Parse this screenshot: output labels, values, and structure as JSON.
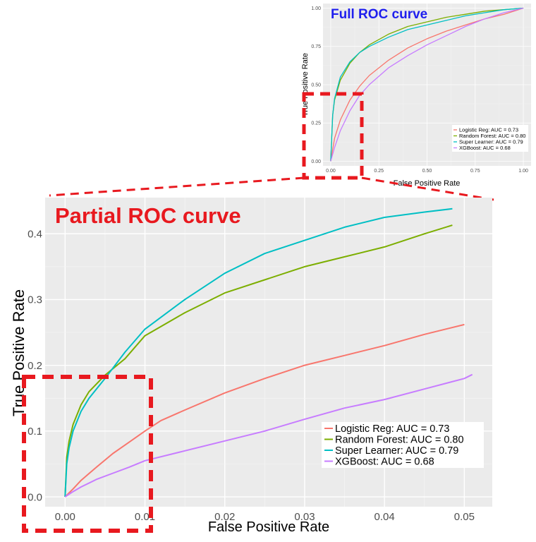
{
  "chart_data": [
    {
      "type": "line",
      "title": "Partial ROC curve",
      "xlabel": "False Positive Rate",
      "ylabel": "True Positive Rate",
      "xlim": [
        -0.0025,
        0.0535
      ],
      "ylim": [
        -0.015,
        0.455
      ],
      "xticks": [
        0.0,
        0.01,
        0.02,
        0.03,
        0.04,
        0.05
      ],
      "xtick_labels": [
        "0.00",
        "0.01",
        "0.02",
        "0.03",
        "0.04",
        "0.05"
      ],
      "yticks": [
        0.0,
        0.1,
        0.2,
        0.3,
        0.4
      ],
      "ytick_labels": [
        "0.0",
        "0.1",
        "0.2",
        "0.3",
        "0.4"
      ],
      "grid": true,
      "legend_position": "bottom-right",
      "series": [
        {
          "name": "Logistic Reg: AUC = 0.73",
          "color": "#F8766D",
          "x": [
            0,
            0.001,
            0.002,
            0.004,
            0.006,
            0.008,
            0.01,
            0.012,
            0.015,
            0.02,
            0.025,
            0.03,
            0.035,
            0.04,
            0.045,
            0.05
          ],
          "y": [
            0,
            0.012,
            0.025,
            0.046,
            0.066,
            0.083,
            0.1,
            0.116,
            0.132,
            0.158,
            0.18,
            0.2,
            0.215,
            0.23,
            0.247,
            0.262
          ]
        },
        {
          "name": "Random Forest: AUC = 0.80",
          "color": "#7CAE00",
          "x": [
            0,
            0.0002,
            0.0005,
            0.001,
            0.002,
            0.003,
            0.005,
            0.0075,
            0.01,
            0.015,
            0.02,
            0.025,
            0.03,
            0.035,
            0.04,
            0.045,
            0.0485
          ],
          "y": [
            0,
            0.06,
            0.085,
            0.11,
            0.14,
            0.16,
            0.185,
            0.21,
            0.245,
            0.28,
            0.31,
            0.33,
            0.35,
            0.365,
            0.38,
            0.4,
            0.413
          ]
        },
        {
          "name": "Super Learner: AUC = 0.79",
          "color": "#00BFC4",
          "x": [
            0,
            0.0002,
            0.0005,
            0.001,
            0.002,
            0.003,
            0.005,
            0.0075,
            0.01,
            0.015,
            0.02,
            0.025,
            0.03,
            0.035,
            0.04,
            0.045,
            0.0485
          ],
          "y": [
            0,
            0.05,
            0.075,
            0.1,
            0.13,
            0.15,
            0.18,
            0.22,
            0.255,
            0.3,
            0.34,
            0.37,
            0.39,
            0.41,
            0.425,
            0.433,
            0.438
          ]
        },
        {
          "name": "XGBoost: AUC = 0.68",
          "color": "#C77CFF",
          "x": [
            0,
            0.001,
            0.002,
            0.004,
            0.006,
            0.008,
            0.01,
            0.015,
            0.02,
            0.025,
            0.03,
            0.035,
            0.04,
            0.045,
            0.05,
            0.051
          ],
          "y": [
            0,
            0.008,
            0.015,
            0.027,
            0.036,
            0.045,
            0.055,
            0.07,
            0.085,
            0.1,
            0.118,
            0.135,
            0.148,
            0.164,
            0.18,
            0.186
          ]
        }
      ]
    },
    {
      "type": "line",
      "title": "Full ROC curve",
      "xlabel": "False Positive Rate",
      "ylabel": "True Positive Rate",
      "xlim": [
        -0.04,
        1.04
      ],
      "ylim": [
        -0.03,
        1.03
      ],
      "xticks": [
        0.0,
        0.25,
        0.5,
        0.75,
        1.0
      ],
      "xtick_labels": [
        "0.00",
        "0.25",
        "0.50",
        "0.75",
        "1.00"
      ],
      "yticks": [
        0.0,
        0.25,
        0.5,
        0.75,
        1.0
      ],
      "ytick_labels": [
        "0.00",
        "0.25",
        "0.50",
        "0.75",
        "1.00"
      ],
      "grid": true,
      "legend_position": "bottom-right",
      "series": [
        {
          "name": "Logistic Reg: AUC = 0.73",
          "color": "#F8766D",
          "x": [
            0,
            0.02,
            0.05,
            0.1,
            0.15,
            0.2,
            0.3,
            0.4,
            0.5,
            0.6,
            0.7,
            0.8,
            0.9,
            1.0
          ],
          "y": [
            0,
            0.15,
            0.27,
            0.4,
            0.49,
            0.56,
            0.66,
            0.74,
            0.8,
            0.85,
            0.89,
            0.93,
            0.96,
            1.0
          ]
        },
        {
          "name": "Random Forest: AUC = 0.80",
          "color": "#7CAE00",
          "x": [
            0,
            0.01,
            0.02,
            0.05,
            0.1,
            0.15,
            0.2,
            0.3,
            0.4,
            0.5,
            0.6,
            0.7,
            0.8,
            0.9,
            1.0
          ],
          "y": [
            0,
            0.3,
            0.4,
            0.53,
            0.64,
            0.71,
            0.76,
            0.83,
            0.88,
            0.91,
            0.94,
            0.96,
            0.98,
            0.99,
            1.0
          ]
        },
        {
          "name": "Super Learner: AUC = 0.79",
          "color": "#00BFC4",
          "x": [
            0,
            0.01,
            0.02,
            0.05,
            0.1,
            0.15,
            0.2,
            0.3,
            0.4,
            0.5,
            0.6,
            0.7,
            0.8,
            0.9,
            1.0
          ],
          "y": [
            0,
            0.3,
            0.41,
            0.55,
            0.65,
            0.71,
            0.75,
            0.81,
            0.86,
            0.89,
            0.92,
            0.95,
            0.97,
            0.99,
            1.0
          ]
        },
        {
          "name": "XGBoost: AUC = 0.68",
          "color": "#C77CFF",
          "x": [
            0,
            0.02,
            0.05,
            0.1,
            0.15,
            0.2,
            0.3,
            0.4,
            0.5,
            0.6,
            0.7,
            0.8,
            0.9,
            1.0
          ],
          "y": [
            0,
            0.09,
            0.2,
            0.33,
            0.43,
            0.5,
            0.61,
            0.69,
            0.76,
            0.82,
            0.88,
            0.93,
            0.97,
            1.0
          ]
        }
      ]
    }
  ],
  "highlight_color": "#E8191F"
}
